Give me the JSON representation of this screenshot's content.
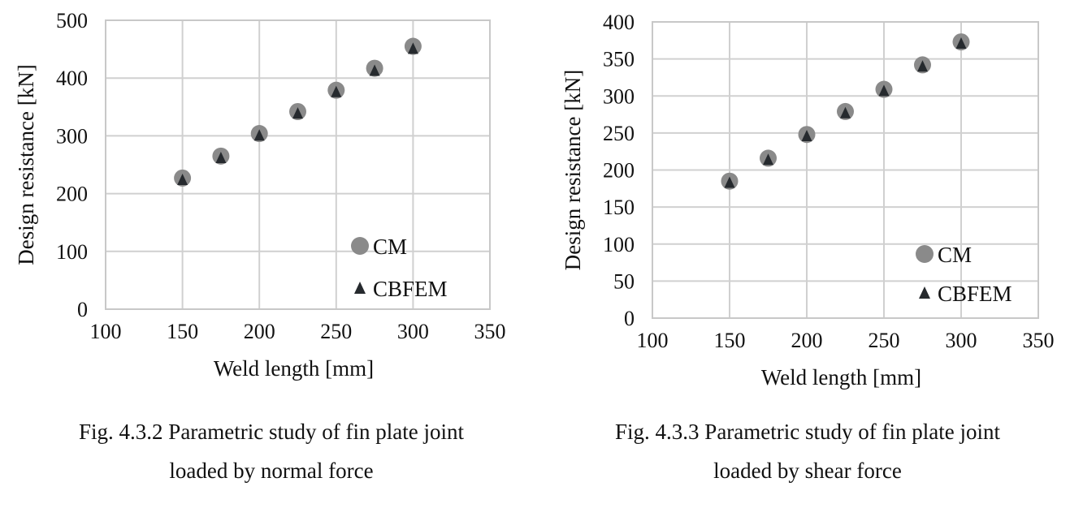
{
  "chart_data": [
    {
      "type": "scatter",
      "caption_line1": "Fig. 4.3.2 Parametric study of fin plate joint",
      "caption_line2": "loaded by normal force",
      "xlabel": "Weld length [mm]",
      "ylabel": "Design resistance [kN]",
      "xlim": [
        100,
        350
      ],
      "ylim": [
        0,
        500
      ],
      "xticks": [
        100,
        150,
        200,
        250,
        300,
        350
      ],
      "yticks": [
        0,
        100,
        200,
        300,
        400,
        500
      ],
      "grid": true,
      "legend_position": "bottom-right",
      "x": [
        150,
        175,
        200,
        225,
        250,
        275,
        300
      ],
      "series": [
        {
          "name": "CM",
          "marker": "circle",
          "color": "#8a8a8a",
          "values": [
            227,
            265,
            304,
            342,
            379,
            417,
            455
          ]
        },
        {
          "name": "CBFEM",
          "marker": "triangle",
          "color": "#262a2e",
          "values": [
            224,
            262,
            301,
            339,
            376,
            413,
            451
          ]
        }
      ]
    },
    {
      "type": "scatter",
      "caption_line1": "Fig. 4.3.3 Parametric study of fin plate joint",
      "caption_line2": "loaded by shear force",
      "xlabel": "Weld length [mm]",
      "ylabel": "Design resistance [kN]",
      "xlim": [
        100,
        350
      ],
      "ylim": [
        0,
        400
      ],
      "xticks": [
        100,
        150,
        200,
        250,
        300,
        350
      ],
      "yticks": [
        0,
        50,
        100,
        150,
        200,
        250,
        300,
        350,
        400
      ],
      "grid": true,
      "legend_position": "bottom-right",
      "x": [
        150,
        175,
        200,
        225,
        250,
        275,
        300
      ],
      "series": [
        {
          "name": "CM",
          "marker": "circle",
          "color": "#8a8a8a",
          "values": [
            185,
            216,
            248,
            279,
            309,
            342,
            373
          ]
        },
        {
          "name": "CBFEM",
          "marker": "triangle",
          "color": "#262a2e",
          "values": [
            183,
            214,
            246,
            277,
            307,
            340,
            371
          ]
        }
      ]
    }
  ]
}
